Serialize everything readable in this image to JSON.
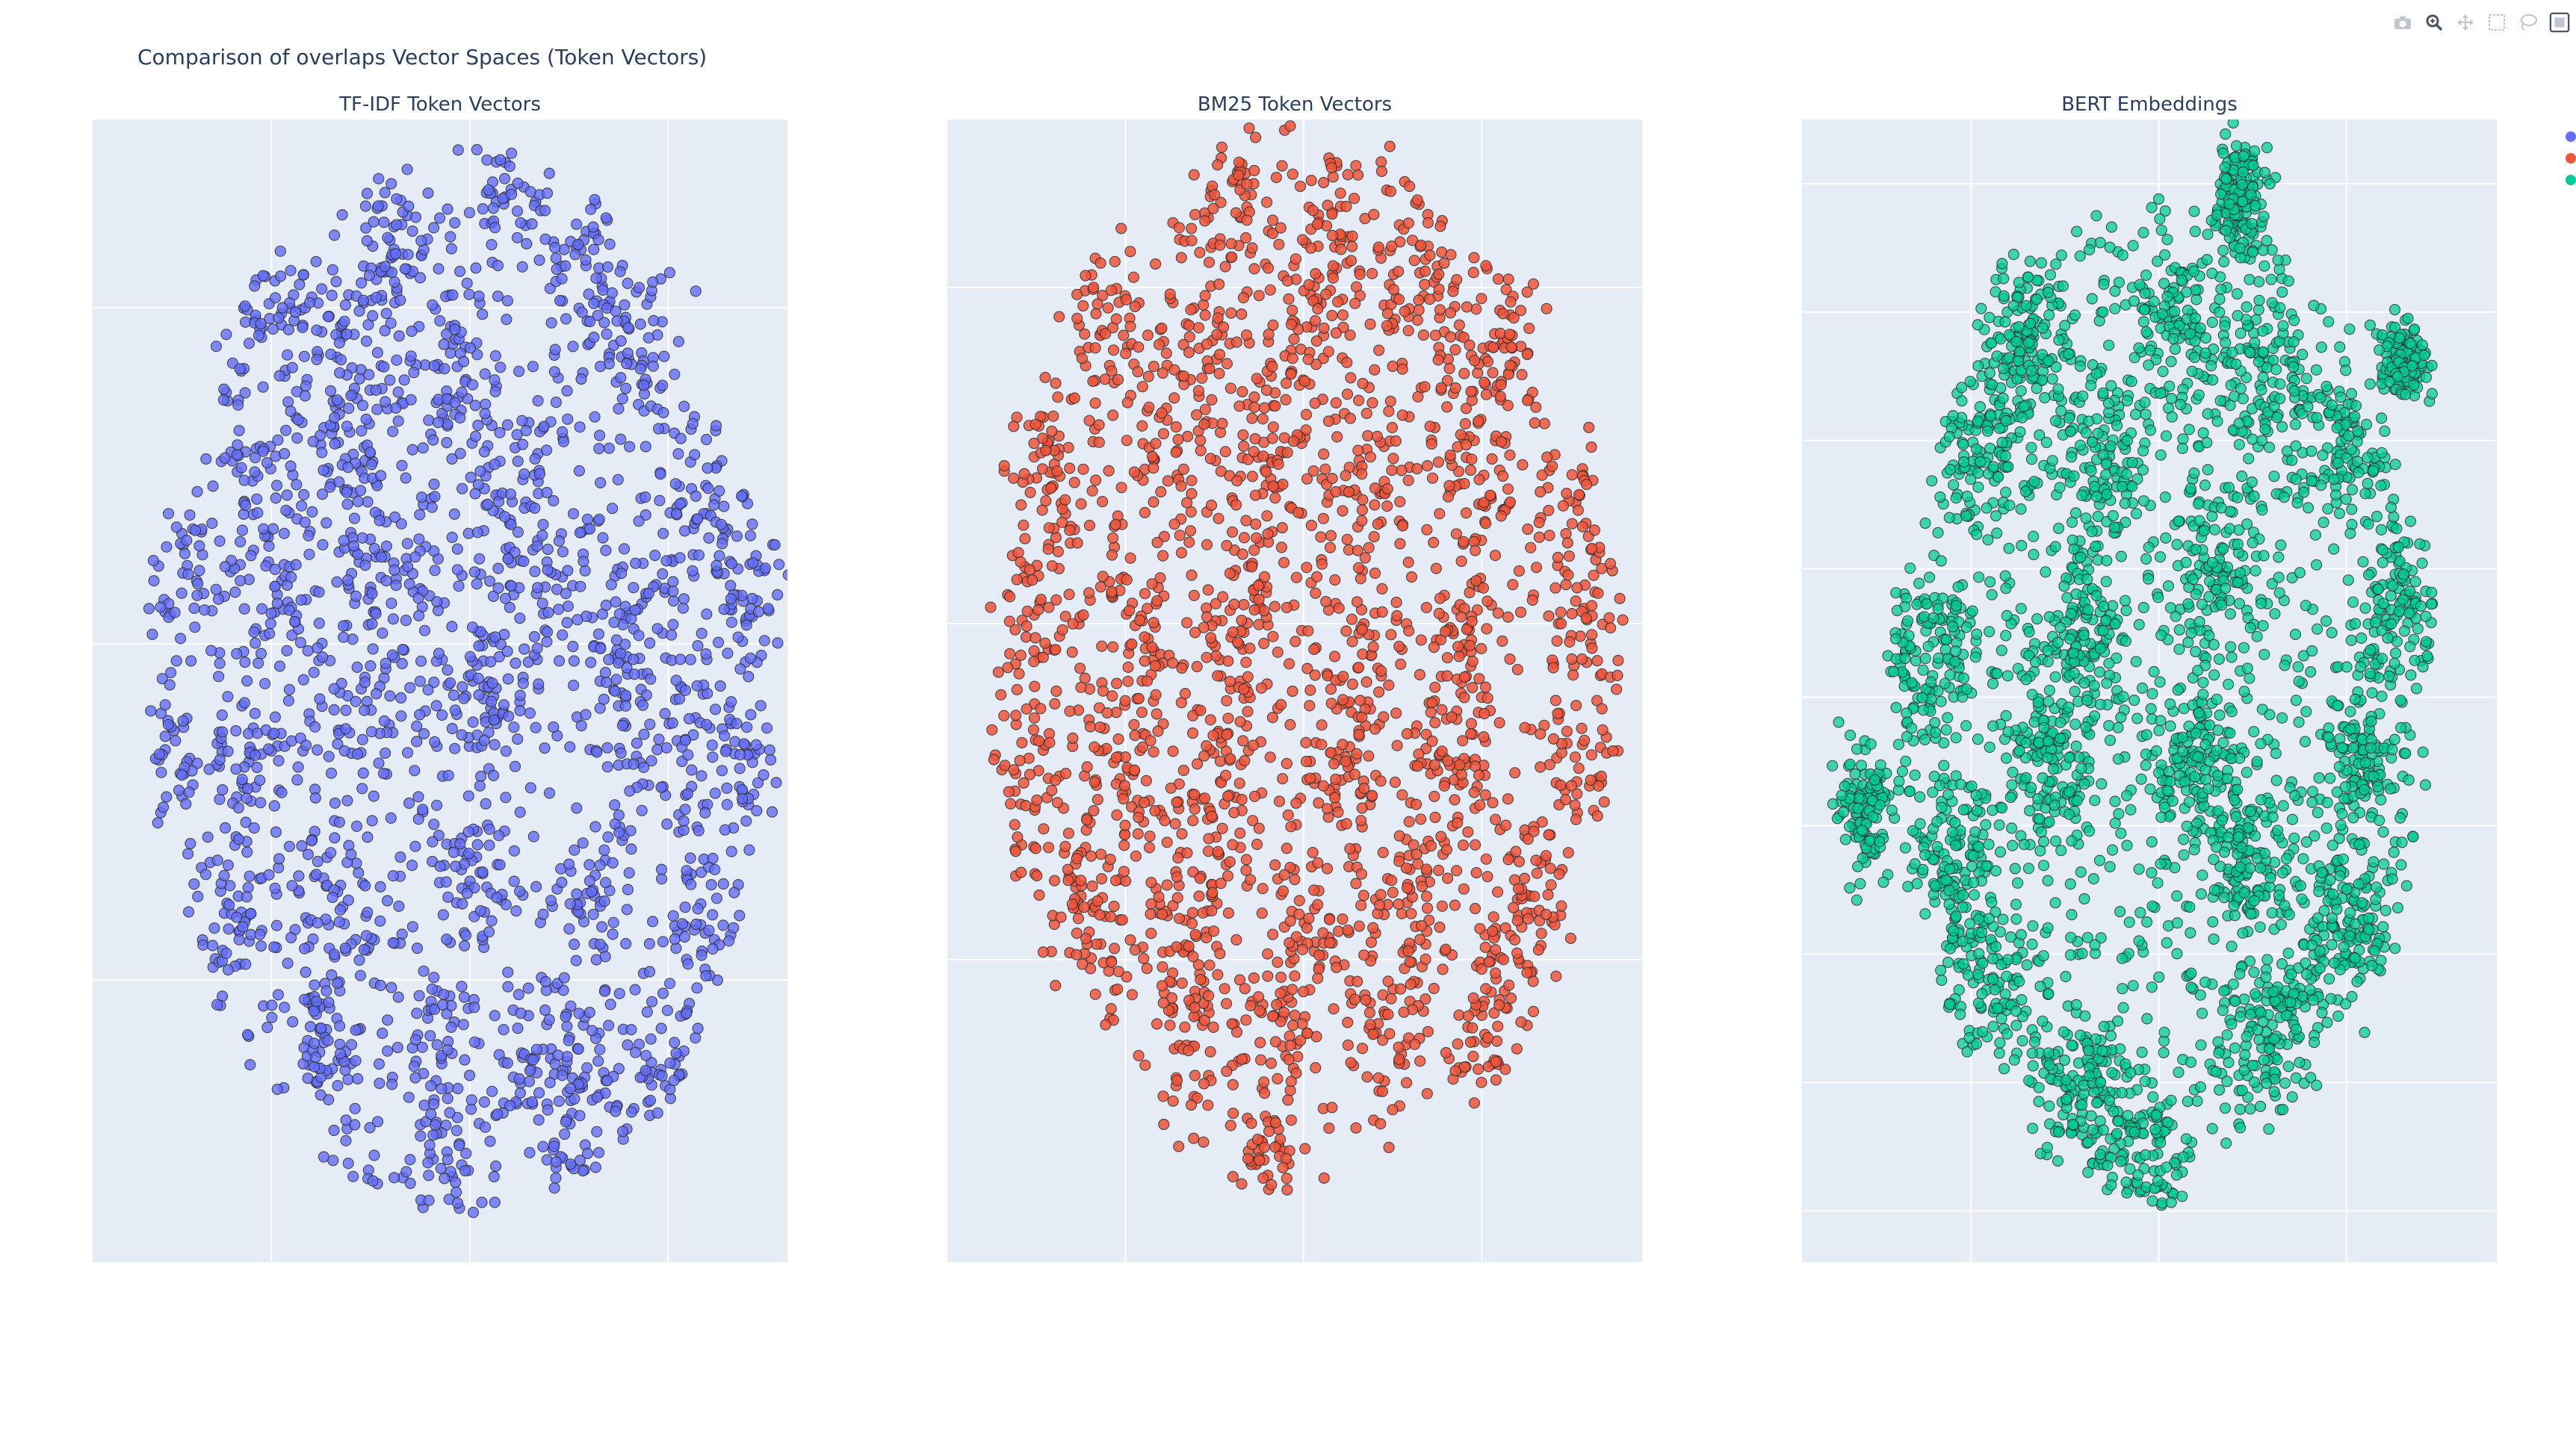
{
  "title": "Comparison of overlaps Vector Spaces (Token Vectors)",
  "modebar": [
    {
      "name": "camera-icon"
    },
    {
      "name": "zoom-icon"
    },
    {
      "name": "pan-icon"
    },
    {
      "name": "box-select-icon"
    },
    {
      "name": "lasso-select-icon"
    },
    {
      "name": "autoscale-icon"
    }
  ],
  "legend": {
    "colors": [
      "#636efa",
      "#ef553b",
      "#00cc96"
    ]
  },
  "chart_data": [
    {
      "type": "scatter",
      "title": "TF-IDF Token Vectors",
      "color": "#636efa",
      "marker_alpha": 0.8,
      "xlabel": "",
      "ylabel": "",
      "grid": true,
      "xlim": [
        -95,
        80
      ],
      "ylim": [
        -92,
        78
      ],
      "xgrid": [
        -50,
        0,
        50
      ],
      "ygrid": [
        -50,
        0,
        50
      ],
      "point_count": 2600,
      "shape": {
        "center": [
          0,
          -5
        ],
        "radius": [
          80,
          78
        ]
      },
      "clusters": [
        [
          8,
          66
        ],
        [
          -20,
          58
        ],
        [
          30,
          55
        ],
        [
          -52,
          48
        ],
        [
          -35,
          48
        ],
        [
          42,
          45
        ],
        [
          -5,
          38
        ],
        [
          -52,
          25
        ],
        [
          -30,
          28
        ],
        [
          12,
          25
        ],
        [
          55,
          22
        ],
        [
          -75,
          12
        ],
        [
          -50,
          5
        ],
        [
          -20,
          8
        ],
        [
          15,
          8
        ],
        [
          40,
          5
        ],
        [
          72,
          8
        ],
        [
          -80,
          -15
        ],
        [
          -55,
          -18
        ],
        [
          -28,
          -12
        ],
        [
          5,
          -10
        ],
        [
          42,
          -15
        ],
        [
          65,
          -18
        ],
        [
          -60,
          -40
        ],
        [
          -35,
          -38
        ],
        [
          0,
          -35
        ],
        [
          30,
          -38
        ],
        [
          60,
          -42
        ],
        [
          -62,
          -62
        ],
        [
          -35,
          -60
        ],
        [
          -10,
          -58
        ],
        [
          22,
          -62
        ],
        [
          48,
          -65
        ],
        [
          -35,
          -80
        ],
        [
          -5,
          -82
        ],
        [
          25,
          -78
        ],
        [
          -2,
          -92
        ]
      ]
    },
    {
      "type": "scatter",
      "title": "BM25 Token Vectors",
      "color": "#ef553b",
      "marker_alpha": 0.85,
      "xlabel": "",
      "ylabel": "",
      "grid": true,
      "xlim": [
        -100,
        95
      ],
      "ylim": [
        -95,
        75
      ],
      "xgrid": [
        -50,
        0,
        50
      ],
      "ygrid": [
        -50,
        0,
        50
      ],
      "point_count": 2500,
      "shape": {
        "center": [
          0,
          -5
        ],
        "radius": [
          88,
          78
        ]
      },
      "clusters": [
        [
          -18,
          62
        ],
        [
          12,
          64
        ],
        [
          -55,
          45
        ],
        [
          -28,
          45
        ],
        [
          5,
          45
        ],
        [
          32,
          48
        ],
        [
          55,
          42
        ],
        [
          -70,
          22
        ],
        [
          -40,
          25
        ],
        [
          -10,
          25
        ],
        [
          20,
          22
        ],
        [
          50,
          22
        ],
        [
          78,
          20
        ],
        [
          -75,
          2
        ],
        [
          -45,
          0
        ],
        [
          -15,
          2
        ],
        [
          15,
          -2
        ],
        [
          45,
          0
        ],
        [
          80,
          0
        ],
        [
          -78,
          -22
        ],
        [
          -50,
          -20
        ],
        [
          -20,
          -22
        ],
        [
          12,
          -20
        ],
        [
          42,
          -22
        ],
        [
          78,
          -20
        ],
        [
          -60,
          -42
        ],
        [
          -30,
          -40
        ],
        [
          0,
          -42
        ],
        [
          30,
          -40
        ],
        [
          62,
          -42
        ],
        [
          -35,
          -62
        ],
        [
          -5,
          -62
        ],
        [
          25,
          -60
        ],
        [
          50,
          -58
        ],
        [
          -12,
          -82
        ]
      ]
    },
    {
      "type": "scatter",
      "title": "BERT Embeddings",
      "color": "#00cc96",
      "marker_alpha": 0.75,
      "xlabel": "",
      "ylabel": "",
      "grid": true,
      "xlim": [
        -95,
        90
      ],
      "ylim": [
        -98,
        80
      ],
      "xgrid": [
        -50,
        0,
        50
      ],
      "ygrid": [
        -90,
        -70,
        -50,
        -30,
        -10,
        10,
        30,
        50,
        70
      ],
      "point_count": 3200,
      "shape": {
        "center": [
          0,
          -8
        ],
        "radius": [
          72,
          80
        ]
      },
      "clusters": [
        [
          -35,
          45
        ],
        [
          5,
          48
        ],
        [
          -45,
          30
        ],
        [
          -60,
          -5
        ],
        [
          -55,
          -35
        ],
        [
          -45,
          -55
        ],
        [
          -20,
          -70
        ],
        [
          -5,
          -82
        ],
        [
          30,
          -60
        ],
        [
          50,
          -45
        ],
        [
          55,
          -20
        ],
        [
          65,
          5
        ],
        [
          48,
          30
        ],
        [
          28,
          40
        ],
        [
          -15,
          25
        ],
        [
          15,
          10
        ],
        [
          -20,
          0
        ],
        [
          10,
          -20
        ],
        [
          -30,
          -20
        ],
        [
          25,
          -35
        ]
      ],
      "islands": [
        {
          "center": [
            22,
            68
          ],
          "radius": [
            6,
            8
          ],
          "count": 160
        },
        {
          "center": [
            65,
            42
          ],
          "radius": [
            6,
            6
          ],
          "count": 140
        },
        {
          "center": [
            -78,
            -28
          ],
          "radius": [
            7,
            10
          ],
          "count": 120
        }
      ]
    }
  ]
}
